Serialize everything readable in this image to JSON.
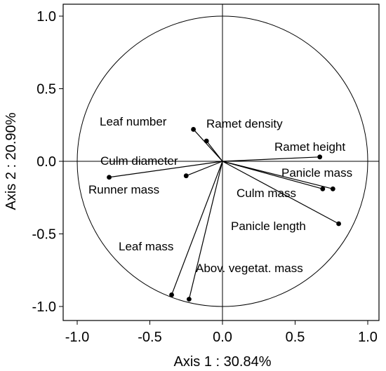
{
  "chart_data": {
    "type": "scatter",
    "subtype": "pca-correlation-circle",
    "title": "",
    "xlabel": "Axis 1 : 30.84%",
    "ylabel": "Axis 2 : 20.90%",
    "xlim": [
      -1.1,
      1.1
    ],
    "ylim": [
      -1.1,
      1.05
    ],
    "xticks": [
      -1.0,
      -0.5,
      0.0,
      0.5,
      1.0
    ],
    "yticks": [
      -1.0,
      -0.5,
      0.0,
      0.5,
      1.0
    ],
    "xtick_labels": [
      "-1.0",
      "-0.5",
      "0.0",
      "0.5",
      "1.0"
    ],
    "ytick_labels": [
      "-1.0",
      "-0.5",
      "0.0",
      "0.5",
      "1.0"
    ],
    "grid": false,
    "unit_circle": true,
    "variables": [
      {
        "name": "Leaf number",
        "x": -0.2,
        "y": 0.22
      },
      {
        "name": "Ramet density",
        "x": -0.11,
        "y": 0.14
      },
      {
        "name": "Ramet height",
        "x": 0.67,
        "y": 0.03
      },
      {
        "name": "Culm diameter",
        "x": -0.25,
        "y": -0.1
      },
      {
        "name": "Runner mass",
        "x": -0.78,
        "y": -0.11
      },
      {
        "name": "Panicle mass",
        "x": 0.76,
        "y": -0.19
      },
      {
        "name": "Culm mass",
        "x": 0.69,
        "y": -0.19
      },
      {
        "name": "Panicle length",
        "x": 0.8,
        "y": -0.43
      },
      {
        "name": "Leaf mass",
        "x": -0.35,
        "y": -0.92
      },
      {
        "name": "Abov. vegetat. mass",
        "x": -0.23,
        "y": -0.95
      }
    ]
  }
}
